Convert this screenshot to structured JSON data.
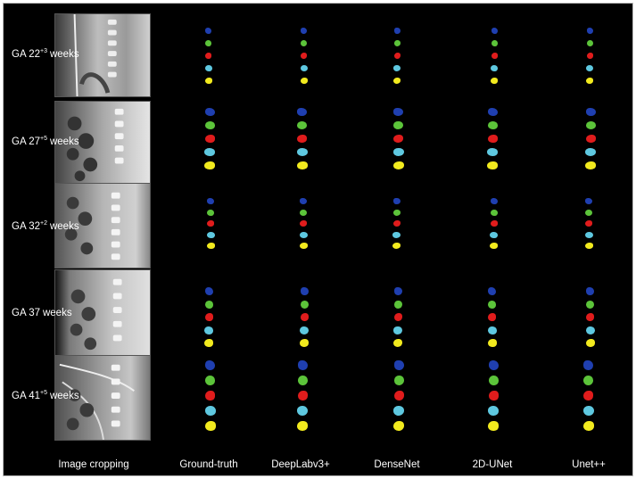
{
  "columns": [
    "Image cropping",
    "Ground-truth",
    "DeepLabv3+",
    "DenseNet",
    "2D-UNet",
    "Unet++"
  ],
  "rows": [
    {
      "prefix": "GA ",
      "ga_main": "22",
      "ga_sup": "+3",
      "ga_suffix": "weeks"
    },
    {
      "prefix": "GA ",
      "ga_main": "27",
      "ga_sup": "+5",
      "ga_suffix": "weeks"
    },
    {
      "prefix": "GA ",
      "ga_main": "32",
      "ga_sup": "+2",
      "ga_suffix": "weeks"
    },
    {
      "prefix": "GA ",
      "ga_main": "37",
      "ga_sup": "",
      "ga_suffix": "weeks"
    },
    {
      "prefix": "GA ",
      "ga_main": "41",
      "ga_sup": "+5",
      "ga_suffix": "weeks"
    }
  ],
  "segment_colors": [
    "#1f3fb0",
    "#5cc43a",
    "#e01c1c",
    "#5ec8e0",
    "#f2ea1e"
  ],
  "background_color": "#000000"
}
